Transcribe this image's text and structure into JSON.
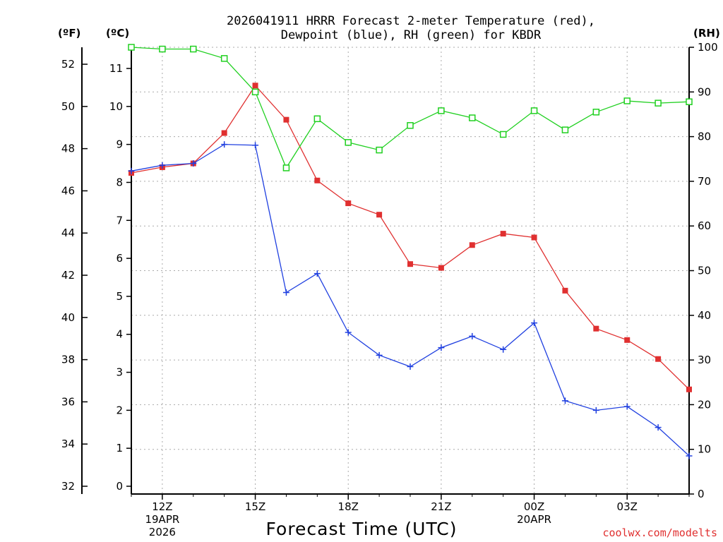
{
  "chart_data": {
    "type": "line",
    "title_lines": [
      "2026041911 HRRR Forecast 2-meter Temperature (red),",
      "Dewpoint (blue), RH (green) for KBDR"
    ],
    "unit_labels": {
      "fahrenheit": "(ºF)",
      "celsius": "(ºC)",
      "rh": "(RH)"
    },
    "xlabel": "Forecast Time (UTC)",
    "credit": "coolwx.com/modelts",
    "x_hours": [
      11,
      12,
      13,
      14,
      15,
      16,
      17,
      18,
      19,
      20,
      21,
      22,
      23,
      24,
      25,
      26,
      27,
      28,
      29
    ],
    "xlim": [
      11,
      29
    ],
    "x_ticks": [
      {
        "hour": 12,
        "lines": [
          "12Z",
          "19APR",
          "2026"
        ]
      },
      {
        "hour": 15,
        "lines": [
          "15Z"
        ]
      },
      {
        "hour": 18,
        "lines": [
          "18Z"
        ]
      },
      {
        "hour": 21,
        "lines": [
          "21Z"
        ]
      },
      {
        "hour": 24,
        "lines": [
          "00Z",
          "20APR"
        ]
      },
      {
        "hour": 27,
        "lines": [
          "03Z"
        ]
      }
    ],
    "celsius_axis": {
      "lim": [
        -0.15,
        11.55
      ],
      "ticks": [
        0,
        1,
        2,
        3,
        4,
        5,
        6,
        7,
        8,
        9,
        10,
        11
      ]
    },
    "fahrenheit_axis": {
      "ticks": [
        32,
        34,
        36,
        38,
        40,
        42,
        44,
        46,
        48,
        50,
        52
      ]
    },
    "rh_axis": {
      "lim": [
        0,
        100
      ],
      "ticks": [
        0,
        10,
        20,
        30,
        40,
        50,
        60,
        70,
        80,
        90,
        100
      ]
    },
    "series": [
      {
        "name": "2-meter Temperature",
        "axis": "celsius",
        "color": "#e03030",
        "marker": "filled-square",
        "values": [
          8.25,
          8.4,
          8.5,
          9.3,
          10.55,
          9.65,
          8.05,
          7.45,
          7.15,
          5.85,
          5.75,
          6.35,
          6.65,
          6.55,
          5.15,
          4.15,
          3.85,
          3.35,
          2.55
        ]
      },
      {
        "name": "Dewpoint",
        "axis": "celsius",
        "color": "#2040e0",
        "marker": "plus",
        "values": [
          8.3,
          8.45,
          8.5,
          9.0,
          8.98,
          5.1,
          5.6,
          4.05,
          3.45,
          3.15,
          3.65,
          3.95,
          3.6,
          4.3,
          2.25,
          2.0,
          2.1,
          1.55,
          0.8
        ]
      },
      {
        "name": "RH",
        "axis": "rh",
        "color": "#20d020",
        "marker": "open-square",
        "values": [
          100,
          99.6,
          99.6,
          97.5,
          90,
          73,
          84,
          78.7,
          77,
          82.5,
          85.8,
          84.2,
          80.5,
          85.8,
          81.5,
          85.5,
          88,
          87.5,
          87.8
        ]
      }
    ]
  }
}
